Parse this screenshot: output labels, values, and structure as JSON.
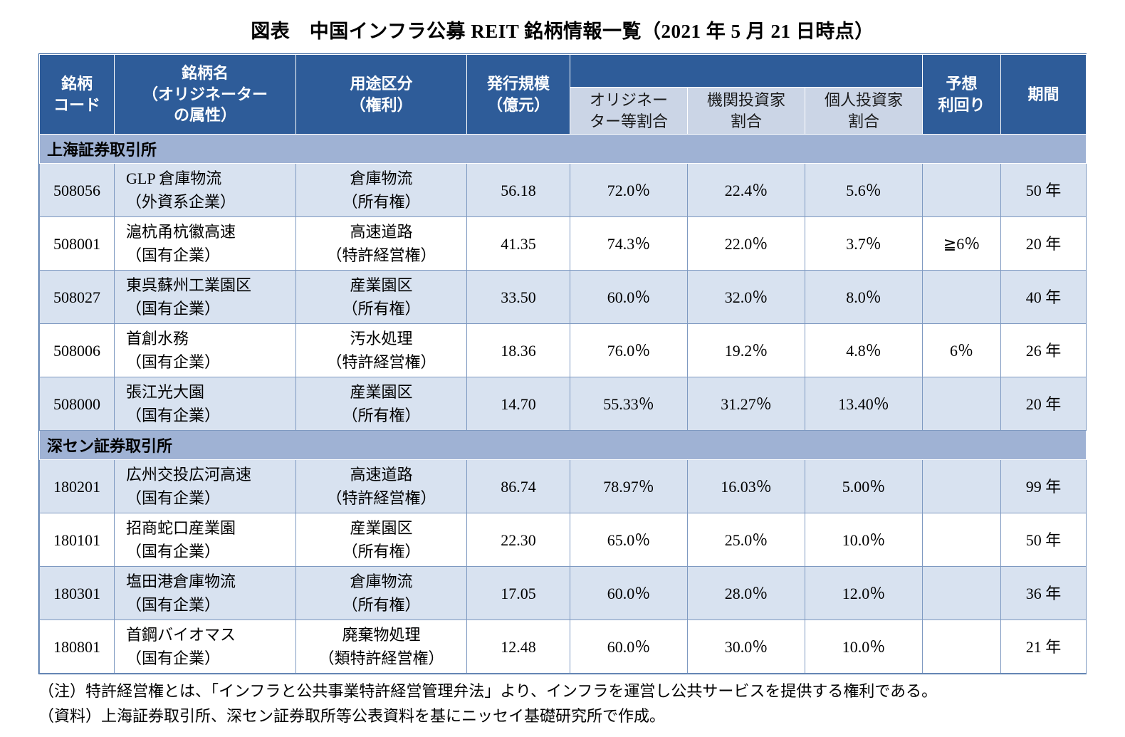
{
  "title": "図表　中国インフラ公募 REIT 銘柄情報一覧（2021 年 5 月 21 日時点）",
  "table": {
    "headers": {
      "code": "銘柄\nコード",
      "name": "銘柄名\n（オリジネーター\nの属性）",
      "use": "用途区分\n（権利）",
      "size": "発行規模\n（億元）",
      "group": "",
      "originator": "オリジネー\nター等割合",
      "institutional": "機関投資家\n割合",
      "individual": "個人投資家\n割合",
      "yield": "予想\n利回り",
      "period": "期間"
    },
    "sections": [
      {
        "label": "上海証券取引所",
        "rows": [
          {
            "code": "508056",
            "name": "GLP 倉庫物流\n（外資系企業）",
            "use": "倉庫物流\n（所有権）",
            "size": "56.18",
            "originator": "72.0％",
            "institutional": "22.4％",
            "individual": "5.6％",
            "yield": "",
            "period": "50 年"
          },
          {
            "code": "508001",
            "name": "滬杭甬杭徽高速\n（国有企業）",
            "use": "高速道路\n（特許経営権）",
            "size": "41.35",
            "originator": "74.3％",
            "institutional": "22.0％",
            "individual": "3.7％",
            "yield": "≧6％",
            "period": "20 年"
          },
          {
            "code": "508027",
            "name": "東呉蘇州工業園区\n（国有企業）",
            "use": "産業園区\n（所有権）",
            "size": "33.50",
            "originator": "60.0％",
            "institutional": "32.0％",
            "individual": "8.0％",
            "yield": "",
            "period": "40 年"
          },
          {
            "code": "508006",
            "name": "首創水務\n（国有企業）",
            "use": "汚水処理\n（特許経営権）",
            "size": "18.36",
            "originator": "76.0％",
            "institutional": "19.2％",
            "individual": "4.8％",
            "yield": "6％",
            "period": "26 年"
          },
          {
            "code": "508000",
            "name": "張江光大園\n（国有企業）",
            "use": "産業園区\n（所有権）",
            "size": "14.70",
            "originator": "55.33％",
            "institutional": "31.27％",
            "individual": "13.40％",
            "yield": "",
            "period": "20 年"
          }
        ]
      },
      {
        "label": "深セン証券取引所",
        "rows": [
          {
            "code": "180201",
            "name": "広州交投広河高速\n（国有企業）",
            "use": "高速道路\n（特許経営権）",
            "size": "86.74",
            "originator": "78.97％",
            "institutional": "16.03％",
            "individual": "5.00％",
            "yield": "",
            "period": "99 年"
          },
          {
            "code": "180101",
            "name": "招商蛇口産業園\n（国有企業）",
            "use": "産業園区\n（所有権）",
            "size": "22.30",
            "originator": "65.0％",
            "institutional": "25.0％",
            "individual": "10.0％",
            "yield": "",
            "period": "50 年"
          },
          {
            "code": "180301",
            "name": "塩田港倉庫物流\n（国有企業）",
            "use": "倉庫物流\n（所有権）",
            "size": "17.05",
            "originator": "60.0％",
            "institutional": "28.0％",
            "individual": "12.0％",
            "yield": "",
            "period": "36 年"
          },
          {
            "code": "180801",
            "name": "首鋼バイオマス\n（国有企業）",
            "use": "廃棄物処理\n（類特許経営権）",
            "size": "12.48",
            "originator": "60.0％",
            "institutional": "30.0％",
            "individual": "10.0％",
            "yield": "",
            "period": "21 年"
          }
        ]
      }
    ]
  },
  "notes": [
    "（注）特許経営権とは、「インフラと公共事業特許経営管理弁法」より、インフラを運営し公共サービスを提供する権利である。",
    "（資料）上海証券取引所、深セン証券取所等公表資料を基にニッセイ基礎研究所で作成。"
  ],
  "colors": {
    "header_bg": "#2E5C99",
    "subheader_bg": "#CBD5E6",
    "section_bg": "#9FB2D4",
    "row_alt_bg": "#D8E2F0",
    "grid": "#7E99C1"
  }
}
